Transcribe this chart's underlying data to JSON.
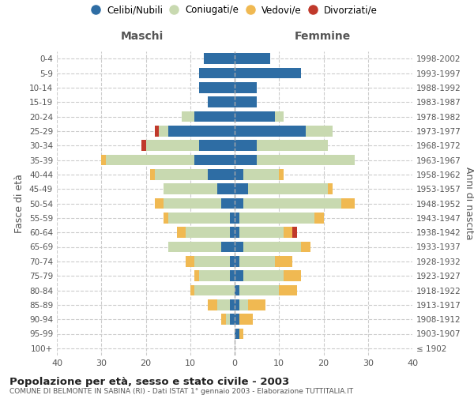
{
  "age_groups": [
    "100+",
    "95-99",
    "90-94",
    "85-89",
    "80-84",
    "75-79",
    "70-74",
    "65-69",
    "60-64",
    "55-59",
    "50-54",
    "45-49",
    "40-44",
    "35-39",
    "30-34",
    "25-29",
    "20-24",
    "15-19",
    "10-14",
    "5-9",
    "0-4"
  ],
  "birth_years": [
    "≤ 1902",
    "1903-1907",
    "1908-1912",
    "1913-1917",
    "1918-1922",
    "1923-1927",
    "1928-1932",
    "1933-1937",
    "1938-1942",
    "1943-1947",
    "1948-1952",
    "1953-1957",
    "1958-1962",
    "1963-1967",
    "1968-1972",
    "1973-1977",
    "1978-1982",
    "1983-1987",
    "1988-1992",
    "1993-1997",
    "1998-2002"
  ],
  "male": {
    "celibi": [
      0,
      0,
      1,
      1,
      0,
      1,
      1,
      3,
      1,
      1,
      3,
      4,
      6,
      9,
      8,
      15,
      9,
      6,
      8,
      8,
      7
    ],
    "coniugati": [
      0,
      0,
      1,
      3,
      9,
      7,
      8,
      12,
      10,
      14,
      13,
      12,
      12,
      20,
      12,
      2,
      3,
      0,
      0,
      0,
      0
    ],
    "vedovi": [
      0,
      0,
      1,
      2,
      1,
      1,
      2,
      0,
      2,
      1,
      2,
      0,
      1,
      1,
      0,
      0,
      0,
      0,
      0,
      0,
      0
    ],
    "divorziati": [
      0,
      0,
      0,
      0,
      0,
      0,
      0,
      0,
      0,
      0,
      0,
      0,
      0,
      0,
      1,
      1,
      0,
      0,
      0,
      0,
      0
    ]
  },
  "female": {
    "nubili": [
      0,
      1,
      1,
      1,
      1,
      2,
      1,
      2,
      1,
      1,
      2,
      3,
      2,
      5,
      5,
      16,
      9,
      5,
      5,
      15,
      8
    ],
    "coniugate": [
      0,
      0,
      0,
      2,
      9,
      9,
      8,
      13,
      10,
      17,
      22,
      18,
      8,
      22,
      16,
      6,
      2,
      0,
      0,
      0,
      0
    ],
    "vedove": [
      0,
      1,
      3,
      4,
      4,
      4,
      4,
      2,
      2,
      2,
      3,
      1,
      1,
      0,
      0,
      0,
      0,
      0,
      0,
      0,
      0
    ],
    "divorziate": [
      0,
      0,
      0,
      0,
      0,
      0,
      0,
      0,
      1,
      0,
      0,
      0,
      0,
      0,
      0,
      0,
      0,
      0,
      0,
      0,
      0
    ]
  },
  "colors": {
    "celibi": "#2e6da4",
    "coniugati": "#c8d9b0",
    "vedovi": "#f0b952",
    "divorziati": "#c0392b"
  },
  "xlim": 40,
  "title": "Popolazione per età, sesso e stato civile - 2003",
  "subtitle": "COMUNE DI BELMONTE IN SABINA (RI) - Dati ISTAT 1° gennaio 2003 - Elaborazione TUTTITALIA.IT",
  "ylabel_left": "Fasce di età",
  "ylabel_right": "Anni di nascita",
  "header_left": "Maschi",
  "header_right": "Femmine",
  "legend_labels": [
    "Celibi/Nubili",
    "Coniugati/e",
    "Vedovi/e",
    "Divorziati/e"
  ]
}
